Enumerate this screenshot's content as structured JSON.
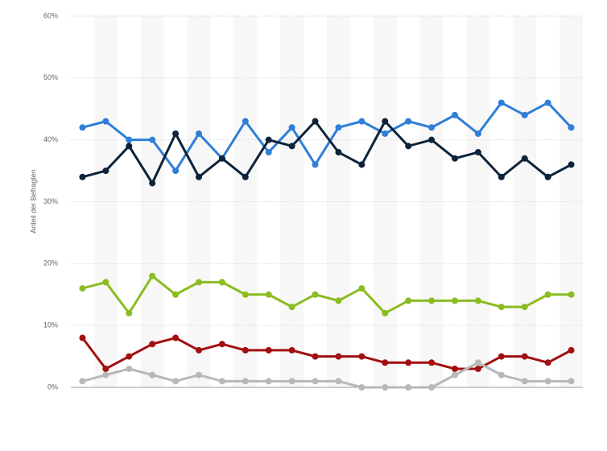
{
  "chart_data": {
    "type": "line",
    "y_label": "Anteil der Befragten",
    "categories": [
      null,
      null,
      null,
      null,
      null,
      null,
      null,
      null,
      null,
      null,
      null,
      null,
      null,
      null,
      null,
      null,
      null,
      null,
      null,
      null,
      null,
      null
    ],
    "series": [
      {
        "color": "#2f7ed8",
        "values": [
          42,
          43,
          40,
          40,
          35,
          41,
          37,
          43,
          38,
          42,
          36,
          42,
          43,
          41,
          43,
          42,
          44,
          41,
          46,
          44,
          46,
          42
        ]
      },
      {
        "color": "#0d233a",
        "values": [
          34,
          35,
          39,
          33,
          41,
          34,
          37,
          34,
          40,
          39,
          43,
          38,
          36,
          43,
          39,
          40,
          37,
          38,
          34,
          37,
          34,
          36
        ]
      },
      {
        "color": "#8bbc21",
        "values": [
          16,
          17,
          12,
          18,
          15,
          17,
          17,
          15,
          15,
          13,
          15,
          14,
          16,
          12,
          14,
          14,
          14,
          14,
          13,
          13,
          15,
          15
        ]
      },
      {
        "color": "#a30f0f",
        "values": [
          8,
          3,
          5,
          7,
          8,
          6,
          7,
          6,
          6,
          6,
          5,
          5,
          5,
          4,
          4,
          4,
          3,
          3,
          5,
          5,
          4,
          6
        ]
      },
      {
        "color": "#b8b8b8",
        "values": [
          1,
          2,
          3,
          2,
          1,
          2,
          1,
          1,
          1,
          1,
          1,
          1,
          0,
          0,
          0,
          0,
          2,
          4,
          2,
          1,
          1,
          1
        ]
      }
    ],
    "ylim": [
      0,
      60
    ],
    "yticks": [
      {
        "value": 0,
        "label": "0%"
      },
      {
        "value": 10,
        "label": "10%"
      },
      {
        "value": 20,
        "label": "20%"
      },
      {
        "value": 30,
        "label": "30%"
      },
      {
        "value": 40,
        "label": "40%"
      },
      {
        "value": 50,
        "label": "50%"
      },
      {
        "value": 60,
        "label": "60%"
      }
    ],
    "grid": true,
    "stripes": true
  }
}
